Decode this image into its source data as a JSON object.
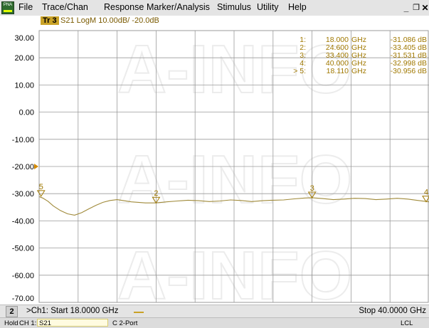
{
  "app": {
    "icon_label": "PNA"
  },
  "menu": [
    "File",
    "Trace/Chan",
    "Response",
    "Marker/Analysis",
    "Stimulus",
    "Utility",
    "Help"
  ],
  "window_buttons": {
    "minimize": "_",
    "restore": "❐",
    "close": "✕"
  },
  "trace": {
    "badge": "Tr 3",
    "info": "S21 LogM 10.00dB/ -20.0dB"
  },
  "y_axis_labels": [
    "30.00",
    "20.00",
    "10.00",
    "0.00",
    "-10.00",
    "-20.00",
    "-30.00",
    "-40.00",
    "-50.00",
    "-60.00",
    "-70.00"
  ],
  "markers": [
    {
      "id": "1:",
      "freq": "18.000",
      "unit": "GHz",
      "value": "-31.086 dB"
    },
    {
      "id": "2:",
      "freq": "24.600",
      "unit": "GHz",
      "value": "-33.405 dB"
    },
    {
      "id": "3:",
      "freq": "33.400",
      "unit": "GHz",
      "value": "-31.531 dB"
    },
    {
      "id": "4:",
      "freq": "40.000",
      "unit": "GHz",
      "value": "-32.998 dB"
    },
    {
      "id": "> 5:",
      "freq": "18.110",
      "unit": "GHz",
      "value": "-30.956 dB"
    }
  ],
  "marker_flags": [
    {
      "label": "5",
      "x": 18.11,
      "y": -30.956
    },
    {
      "label": "2",
      "x": 24.6,
      "y": -33.405
    },
    {
      "label": "3",
      "x": 33.4,
      "y": -31.531
    },
    {
      "label": "4",
      "x": 40.0,
      "y": -32.998
    }
  ],
  "reference_marker": -20.0,
  "watermark": "A-INFO",
  "colors": {
    "trace": "#a08a3a",
    "marker": "#a07800",
    "grid": "#9b9b9b",
    "badge": "#c9a227"
  },
  "chart_data": {
    "type": "line",
    "xlim": [
      18.0,
      40.0
    ],
    "ylim": [
      -70.0,
      30.0
    ],
    "x_divisions": 10,
    "y_divisions": 10,
    "grid": true,
    "series": [
      {
        "x": [
          18.0,
          18.2,
          18.5,
          18.8,
          19.2,
          19.6,
          20.0,
          20.4,
          20.8,
          21.2,
          21.6,
          22.0,
          22.4,
          22.8,
          23.2,
          23.6,
          24.0,
          24.6,
          25.2,
          25.8,
          26.4,
          27.0,
          27.6,
          28.2,
          28.8,
          29.4,
          30.0,
          30.6,
          31.2,
          31.8,
          32.4,
          33.0,
          33.4,
          34.0,
          34.6,
          35.2,
          35.8,
          36.4,
          37.0,
          37.6,
          38.2,
          38.8,
          39.4,
          40.0
        ],
        "y": [
          -31.1,
          -31.6,
          -32.8,
          -34.5,
          -36.2,
          -37.4,
          -37.9,
          -37.0,
          -35.6,
          -34.3,
          -33.2,
          -32.5,
          -32.2,
          -32.6,
          -33.0,
          -33.2,
          -33.4,
          -33.4,
          -33.0,
          -32.7,
          -32.4,
          -32.6,
          -32.9,
          -32.7,
          -32.3,
          -32.5,
          -32.9,
          -32.6,
          -32.4,
          -32.3,
          -31.9,
          -31.6,
          -31.5,
          -31.8,
          -32.2,
          -32.0,
          -31.7,
          -31.8,
          -32.2,
          -32.0,
          -31.7,
          -32.0,
          -32.5,
          -33.0
        ]
      }
    ]
  },
  "status": {
    "channel_number": "2",
    "start_text": ">Ch1: Start  18.0000 GHz",
    "stop_text": "Stop  40.0000 GHz",
    "hold": "Hold",
    "ch": "CH 1:",
    "s21": "S21",
    "port": "C  2-Port",
    "lcl": "LCL"
  }
}
